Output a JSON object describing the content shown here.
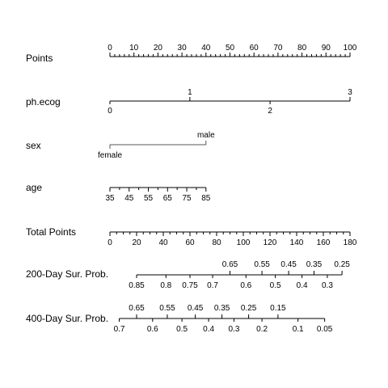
{
  "chart_data": {
    "type": "nomogram",
    "rows": [
      {
        "id": "points",
        "label": "Points",
        "min": 0,
        "max": 100,
        "labeled_ticks": [
          0,
          10,
          20,
          30,
          40,
          50,
          60,
          70,
          80,
          90,
          100
        ],
        "minor_step": 2,
        "labels_side": "above"
      },
      {
        "id": "ph-ecog",
        "label": "ph.ecog",
        "points_range": [
          0,
          100
        ],
        "levels": [
          {
            "label": "0",
            "value": 0,
            "points": 0,
            "side": "below"
          },
          {
            "label": "1",
            "value": 1,
            "points": 33.3,
            "side": "above"
          },
          {
            "label": "2",
            "value": 2,
            "points": 66.7,
            "side": "below"
          },
          {
            "label": "3",
            "value": 3,
            "points": 100,
            "side": "above"
          }
        ]
      },
      {
        "id": "sex",
        "label": "sex",
        "points_range": [
          0,
          40
        ],
        "levels": [
          {
            "label": "female",
            "points": 0,
            "side": "below"
          },
          {
            "label": "male",
            "points": 40,
            "side": "above"
          }
        ]
      },
      {
        "id": "age",
        "label": "age",
        "points_range": [
          0,
          40
        ],
        "min": 35,
        "max": 85,
        "labeled_ticks": [
          35,
          45,
          55,
          65,
          75,
          85
        ],
        "minor_step": 5
      },
      {
        "id": "total-points",
        "label": "Total Points",
        "min": 0,
        "max": 180,
        "labeled_ticks": [
          0,
          20,
          40,
          60,
          80,
          100,
          120,
          140,
          160,
          180
        ],
        "minor_step": 5,
        "labels_side": "below"
      },
      {
        "id": "surv-200",
        "label": "200-Day Sur. Prob.",
        "ticks": [
          {
            "label": "0.85",
            "total_points": 20,
            "side": "below"
          },
          {
            "label": "0.8",
            "total_points": 42,
            "side": "below"
          },
          {
            "label": "0.75",
            "total_points": 60,
            "side": "below"
          },
          {
            "label": "0.7",
            "total_points": 77,
            "side": "below"
          },
          {
            "label": "0.65",
            "total_points": 90,
            "side": "above"
          },
          {
            "label": "0.6",
            "total_points": 102,
            "side": "below"
          },
          {
            "label": "0.55",
            "total_points": 114,
            "side": "above"
          },
          {
            "label": "0.5",
            "total_points": 124,
            "side": "below"
          },
          {
            "label": "0.45",
            "total_points": 134,
            "side": "above"
          },
          {
            "label": "0.4",
            "total_points": 144,
            "side": "below"
          },
          {
            "label": "0.35",
            "total_points": 153,
            "side": "above"
          },
          {
            "label": "0.3",
            "total_points": 163,
            "side": "below"
          },
          {
            "label": "0.25",
            "total_points": 174,
            "side": "above"
          }
        ]
      },
      {
        "id": "surv-400",
        "label": "400-Day Sur. Prob.",
        "ticks": [
          {
            "label": "0.7",
            "total_points": 7,
            "side": "below"
          },
          {
            "label": "0.65",
            "total_points": 20,
            "side": "above"
          },
          {
            "label": "0.6",
            "total_points": 32,
            "side": "below"
          },
          {
            "label": "0.55",
            "total_points": 43,
            "side": "above"
          },
          {
            "label": "0.5",
            "total_points": 54,
            "side": "below"
          },
          {
            "label": "0.45",
            "total_points": 64,
            "side": "above"
          },
          {
            "label": "0.4",
            "total_points": 74,
            "side": "below"
          },
          {
            "label": "0.35",
            "total_points": 84,
            "side": "above"
          },
          {
            "label": "0.3",
            "total_points": 93,
            "side": "below"
          },
          {
            "label": "0.25",
            "total_points": 104,
            "side": "above"
          },
          {
            "label": "0.2",
            "total_points": 114,
            "side": "below"
          },
          {
            "label": "0.15",
            "total_points": 126,
            "side": "above"
          },
          {
            "label": "0.1",
            "total_points": 141,
            "side": "below"
          },
          {
            "label": "0.05",
            "total_points": 161,
            "side": "below"
          }
        ]
      }
    ]
  }
}
